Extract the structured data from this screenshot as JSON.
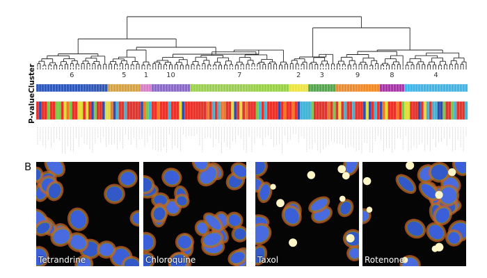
{
  "panel_a": {
    "row_labels": {
      "cluster": "Cluster",
      "pvalue": "P-value"
    },
    "clusters": [
      {
        "label": "6",
        "color": "#2f57b8",
        "count": 26
      },
      {
        "label": "5",
        "color": "#d9a23a",
        "count": 12
      },
      {
        "label": "1",
        "color": "#d77fc5",
        "count": 4
      },
      {
        "label": "10",
        "color": "#8a6cc4",
        "count": 14
      },
      {
        "label": "7",
        "color": "#9bd04e",
        "count": 36
      },
      {
        "label": "2",
        "color": "#ece34a",
        "count": 7
      },
      {
        "label": "3",
        "color": "#52a94a",
        "count": 10
      },
      {
        "label": "9",
        "color": "#f08b2c",
        "count": 16
      },
      {
        "label": "8",
        "color": "#a33aa3",
        "count": 9
      },
      {
        "label": "4",
        "color": "#3fb5e8",
        "count": 23
      }
    ],
    "pvalue_colors": {
      "high": "#e8322a",
      "mid": "#f07a2a",
      "yellow": "#e3dc3c",
      "green": "#7cc94a",
      "cyan": "#3fb5d8",
      "blue": "#2f4fb0"
    }
  },
  "panel_b": {
    "letter": "B",
    "images": [
      {
        "label": "Tetrandrine"
      },
      {
        "label": "Chloroquine"
      },
      {
        "label": "Taxol"
      },
      {
        "label": "Rotenone"
      }
    ]
  }
}
